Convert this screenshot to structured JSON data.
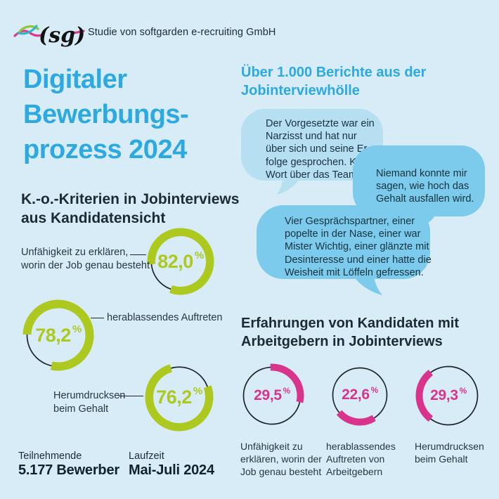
{
  "percent_sign": "%",
  "colors": {
    "background": "#d7ecf7",
    "accent_blue": "#2ca9e1",
    "green": "#adc920",
    "pink": "#d8348b",
    "bubble_light": "#b7dff2",
    "bubble_medium": "#7ccaec",
    "text_dark": "#1c2b33",
    "ring_outline": "#1d252a"
  },
  "header": {
    "logo": "(sg)",
    "subtitle": "Studie von softgarden e-recruiting GmbH"
  },
  "title": "Digitaler\nBewerbungs-\nprozess 2024",
  "reports": {
    "heading": "Über 1.000 Berichte aus der\nJobinterviewhölle",
    "bubbles": [
      {
        "text": "Der Vorgesetzte war ein\nNarzisst und hat nur\nüber sich und seine Er-\nfolge gesprochen. Kein\nWort über das Team."
      },
      {
        "text": "Niemand konnte mir\nsagen, wie hoch das\nGehalt ausfallen wird."
      },
      {
        "text": "Vier Gesprächspartner, einer\npopelte in der Nase, einer war\nMister Wichtig, einer glänzte mit\nDesinteresse und einer hatte die\nWeisheit mit Löffeln gefressen."
      }
    ]
  },
  "ko_section": {
    "heading": "K.-o.-Kriterien in Jobinterviews\naus Kandidatensicht"
  },
  "experience_section": {
    "heading": "Erfahrungen von Kandidaten mit\nArbeitgebern in Jobinterviews"
  },
  "footer": {
    "participants_label": "Teilnehmende",
    "participants_value": "5.177 Bewerber",
    "duration_label": "Laufzeit",
    "duration_value": "Mai-Juli 2024"
  },
  "chart_data": [
    {
      "type": "pie",
      "title": "K.-o.-Kriterien in Jobinterviews aus Kandidatensicht",
      "unit": "%",
      "legend_position": "connector-labels",
      "items": [
        {
          "label": "Unfähigkeit zu erklären,\nworin der Job genau besteht",
          "value": 82.0,
          "value_label": "82,0",
          "color": "#adc920",
          "arc_mid_deg": 52,
          "size": 96,
          "ring": 11.5
        },
        {
          "label": "herablassendes Auftreten",
          "value": 78.2,
          "value_label": "78,2",
          "color": "#adc920",
          "arc_mid_deg": 52,
          "size": 102,
          "ring": 12
        },
        {
          "label": "Herumdrucksen\nbeim Gehalt",
          "value": 76.2,
          "value_label": "76,2",
          "color": "#adc920",
          "arc_mid_deg": 207,
          "size": 98,
          "ring": 11.5
        }
      ]
    },
    {
      "type": "pie",
      "title": "Erfahrungen von Kandidaten mit Arbeitgebern in Jobinterviews",
      "unit": "%",
      "legend_position": "below",
      "items": [
        {
          "label": "Unfähigkeit zu\nerklären, worin der\nJob genau besteht",
          "value": 29.5,
          "value_label": "29,5",
          "color": "#d8348b",
          "arc_mid_deg": 50,
          "size": 92,
          "ring": 10
        },
        {
          "label": "herablassendes\nAuftreten von\nArbeitgebern",
          "value": 22.6,
          "value_label": "22,6",
          "color": "#d8348b",
          "arc_mid_deg": 189,
          "size": 88,
          "ring": 10
        },
        {
          "label": "Herumdrucksen\nbeim Gehalt",
          "value": 29.3,
          "value_label": "29,3",
          "color": "#d8348b",
          "arc_mid_deg": 270,
          "size": 94,
          "ring": 10
        }
      ]
    }
  ]
}
